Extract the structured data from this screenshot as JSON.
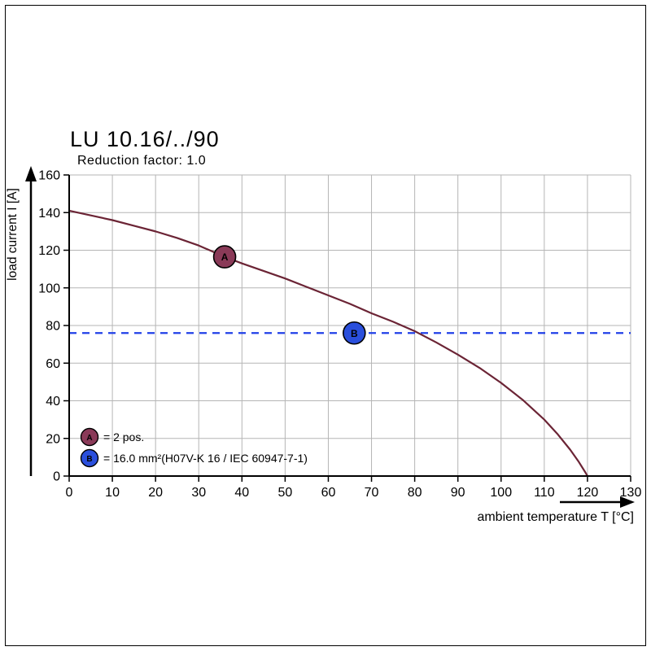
{
  "header": {
    "title": "LU 10.16/../90",
    "subtitle": "Reduction factor: 1.0"
  },
  "chart_data": {
    "type": "line",
    "title": "LU 10.16/../90",
    "subtitle": "Reduction factor: 1.0",
    "xlabel": "ambient temperature T [°C]",
    "ylabel": "load current I [A]",
    "xlim": [
      0,
      130
    ],
    "ylim": [
      0,
      160
    ],
    "x_ticks": [
      0,
      10,
      20,
      30,
      40,
      50,
      60,
      70,
      80,
      90,
      100,
      110,
      120,
      130
    ],
    "y_ticks": [
      0,
      20,
      40,
      60,
      80,
      100,
      120,
      140,
      160
    ],
    "grid": true,
    "legend_position": "bottom-left",
    "colors": {
      "grid": "#b5b5b5",
      "axis": "#000000",
      "curve": "#6b2435",
      "dashed": "#2140e8",
      "marker_a": "#8a3a58",
      "marker_b": "#2a4fdc"
    },
    "series": [
      {
        "name": "derating-curve",
        "color": "#6b2435",
        "points": [
          [
            0,
            141
          ],
          [
            5,
            138.5
          ],
          [
            10,
            136
          ],
          [
            15,
            133
          ],
          [
            20,
            130
          ],
          [
            25,
            126.5
          ],
          [
            30,
            122.5
          ],
          [
            36,
            116.5
          ],
          [
            40,
            113
          ],
          [
            45,
            109
          ],
          [
            50,
            105
          ],
          [
            55,
            100.5
          ],
          [
            60,
            96
          ],
          [
            65,
            91.5
          ],
          [
            70,
            86.5
          ],
          [
            75,
            82
          ],
          [
            80,
            77
          ],
          [
            85,
            71
          ],
          [
            90,
            64.5
          ],
          [
            95,
            57.5
          ],
          [
            100,
            49.5
          ],
          [
            105,
            40.5
          ],
          [
            110,
            30
          ],
          [
            113,
            22.5
          ],
          [
            116,
            14
          ],
          [
            118,
            7.5
          ],
          [
            119.5,
            2
          ],
          [
            120,
            0
          ]
        ]
      }
    ],
    "reference_line": {
      "name": "current-limit-16mm2",
      "value": 76,
      "style": "dashed",
      "color": "#2140e8"
    },
    "markers": [
      {
        "label": "A",
        "x": 36,
        "y": 116.5,
        "fill": "#8a3a58"
      },
      {
        "label": "B",
        "x": 66,
        "y": 76,
        "fill": "#2a4fdc"
      }
    ],
    "legend": [
      {
        "key": "A",
        "color": "#8a3a58",
        "text": "= 2 pos."
      },
      {
        "key": "B",
        "color": "#2a4fdc",
        "text": "= 16.0 mm²(H07V-K 16 / IEC 60947-7-1)"
      }
    ]
  }
}
